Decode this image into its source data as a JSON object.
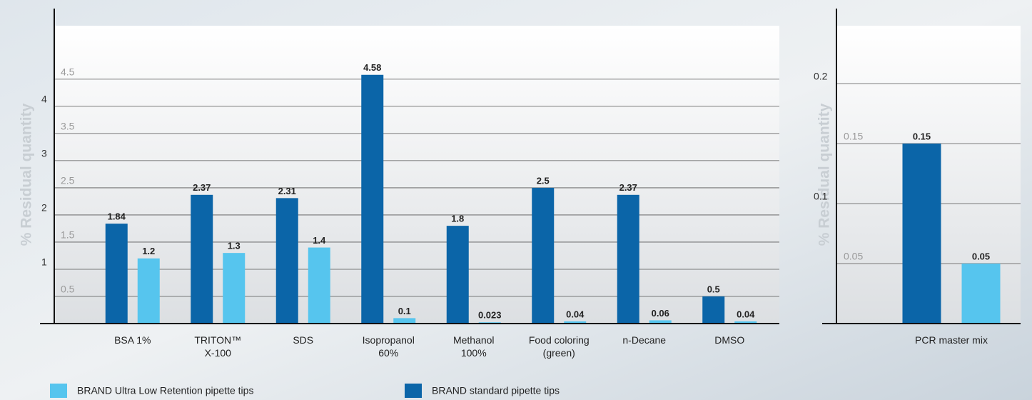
{
  "chart_data": [
    {
      "type": "bar",
      "y_label": "% Residual quantity",
      "categories": [
        [
          "BSA 1%"
        ],
        [
          "TRITON™",
          "X-100"
        ],
        [
          "SDS"
        ],
        [
          "Isopropanol",
          "60%"
        ],
        [
          "Methanol",
          "100%"
        ],
        [
          "Food coloring",
          "(green)"
        ],
        [
          "n-Decane"
        ],
        [
          "DMSO"
        ]
      ],
      "series": [
        {
          "name": "BRAND standard pipette tips",
          "color": "#0b65a8",
          "values": [
            1.84,
            2.37,
            2.31,
            4.58,
            1.8,
            2.5,
            2.37,
            0.5
          ]
        },
        {
          "name": "BRAND Ultra Low Retention pipette tips",
          "color": "#56c5ee",
          "values": [
            1.2,
            1.3,
            1.4,
            0.1,
            0.023,
            0.04,
            0.06,
            0.04
          ]
        }
      ],
      "ylim": [
        0,
        5.8
      ],
      "yticks": [
        0.5,
        1,
        1.5,
        2,
        2.5,
        3,
        3.5,
        4,
        4.5
      ],
      "grid": true
    },
    {
      "type": "bar",
      "y_label": "% Residual quantity",
      "categories": [
        [
          "PCR master mix"
        ]
      ],
      "series": [
        {
          "color": "#0b65a8",
          "values": [
            0.15
          ]
        },
        {
          "color": "#56c5ee",
          "values": [
            0.05
          ]
        }
      ],
      "ylim": [
        0,
        0.2625
      ],
      "yticks": [
        0.05,
        0.1,
        0.15,
        0.2
      ],
      "grid": true
    }
  ]
}
